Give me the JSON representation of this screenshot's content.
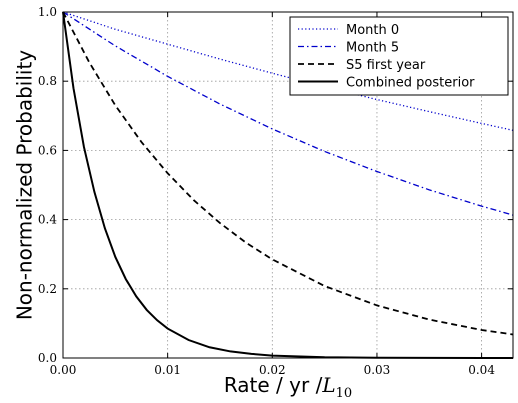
{
  "chart_data": {
    "type": "line",
    "xlabel": "Rate / yr /L10",
    "xlabel_parts": {
      "main": "Rate / yr /",
      "var": "L",
      "sub": "10"
    },
    "ylabel": "Non-normalized Probability",
    "xlim": [
      0.0,
      0.043
    ],
    "ylim": [
      0.0,
      1.0
    ],
    "x_ticks": [
      0.0,
      0.01,
      0.02,
      0.03,
      0.04
    ],
    "x_tick_labels": [
      "0.00",
      "0.01",
      "0.02",
      "0.03",
      "0.04"
    ],
    "y_ticks": [
      0.0,
      0.2,
      0.4,
      0.6,
      0.8,
      1.0
    ],
    "y_tick_labels": [
      "0.0",
      "0.2",
      "0.4",
      "0.6",
      "0.8",
      "1.0"
    ],
    "grid": true,
    "legend_position": "top-right",
    "series": [
      {
        "name": "Month 0",
        "color": "#0000cc",
        "style": "dotted",
        "x": [
          0.0,
          0.005,
          0.01,
          0.015,
          0.02,
          0.025,
          0.03,
          0.035,
          0.04,
          0.043
        ],
        "y": [
          1.0,
          0.95,
          0.907,
          0.864,
          0.823,
          0.784,
          0.747,
          0.712,
          0.678,
          0.658
        ]
      },
      {
        "name": "Month 5",
        "color": "#0000cc",
        "style": "dashdot",
        "x": [
          0.0,
          0.005,
          0.01,
          0.015,
          0.02,
          0.025,
          0.03,
          0.035,
          0.04,
          0.043
        ],
        "y": [
          1.0,
          0.902,
          0.814,
          0.734,
          0.662,
          0.597,
          0.539,
          0.486,
          0.439,
          0.413
        ]
      },
      {
        "name": "S5 first year",
        "color": "#000000",
        "style": "dashed",
        "x": [
          0.0,
          0.0025,
          0.005,
          0.0075,
          0.01,
          0.0125,
          0.015,
          0.0175,
          0.02,
          0.025,
          0.03,
          0.035,
          0.04,
          0.043
        ],
        "y": [
          1.0,
          0.855,
          0.73,
          0.624,
          0.534,
          0.456,
          0.39,
          0.333,
          0.285,
          0.208,
          0.152,
          0.111,
          0.081,
          0.068
        ]
      },
      {
        "name": "Combined posterior",
        "color": "#000000",
        "style": "solid",
        "x": [
          0.0,
          0.001,
          0.002,
          0.003,
          0.004,
          0.005,
          0.006,
          0.007,
          0.008,
          0.009,
          0.01,
          0.012,
          0.014,
          0.016,
          0.018,
          0.02,
          0.025,
          0.03,
          0.035,
          0.04,
          0.043
        ],
        "y": [
          1.0,
          0.78,
          0.61,
          0.48,
          0.375,
          0.292,
          0.228,
          0.178,
          0.139,
          0.109,
          0.085,
          0.052,
          0.031,
          0.019,
          0.012,
          0.007,
          0.002,
          0.0007,
          0.0002,
          0.0001,
          0.0
        ]
      }
    ]
  }
}
